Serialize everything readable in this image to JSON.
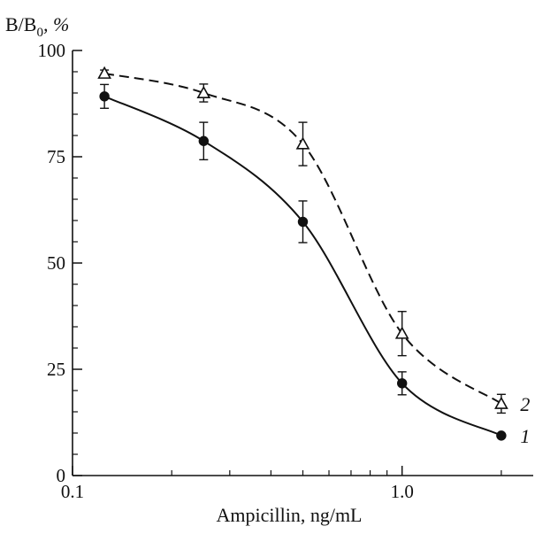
{
  "chart_data": {
    "type": "line",
    "xlabel": "Ampicillin, ng/mL",
    "ylabel": "B/B",
    "ylabel_sub": "0",
    "ylabel_unit": ", %",
    "x_scale": "log",
    "xlim": [
      0.1,
      2.5
    ],
    "ylim": [
      0,
      100
    ],
    "x_ticks": [
      {
        "value": 0.1,
        "label": "0.1"
      },
      {
        "value": 1.0,
        "label": "1.0"
      }
    ],
    "y_ticks": [
      {
        "value": 0,
        "label": "0"
      },
      {
        "value": 25,
        "label": "25"
      },
      {
        "value": 50,
        "label": "50"
      },
      {
        "value": 75,
        "label": "75"
      },
      {
        "value": 100,
        "label": "100"
      }
    ],
    "grid": false,
    "series": [
      {
        "label": "1",
        "marker": "filled-circle",
        "line_style": "solid",
        "color": "#111111",
        "x": [
          0.125,
          0.25,
          0.5,
          1.0,
          2.0
        ],
        "y": [
          89.2,
          78.7,
          59.7,
          21.7,
          9.4
        ],
        "err": [
          2.8,
          4.4,
          4.9,
          2.7,
          0.0
        ]
      },
      {
        "label": "2",
        "marker": "open-triangle",
        "line_style": "dashed",
        "color": "#111111",
        "x": [
          0.125,
          0.25,
          0.5,
          1.0,
          2.0
        ],
        "y": [
          94.6,
          90.0,
          78.0,
          33.4,
          16.9
        ],
        "err": [
          0.8,
          2.1,
          5.1,
          5.2,
          2.2
        ]
      }
    ]
  }
}
